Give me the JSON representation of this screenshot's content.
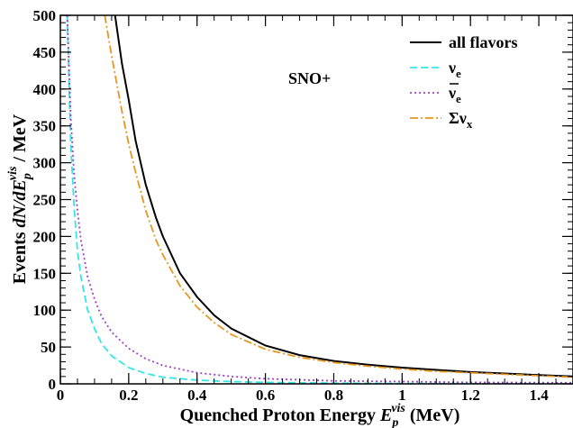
{
  "chart_data": {
    "type": "line",
    "title": "",
    "xlabel": {
      "main": "Quenched Proton Energy ",
      "sym": "E",
      "sub": "p",
      "sup": "vis",
      "unit": " (MeV)"
    },
    "ylabel": {
      "pre": "Events  ",
      "sym": "dN/dE",
      "sub": "p",
      "sup": "vis",
      "post": " / MeV"
    },
    "xlim": [
      0,
      1.5
    ],
    "ylim": [
      0,
      500
    ],
    "xticks": [
      0,
      0.2,
      0.4,
      0.6,
      0.8,
      1,
      1.2,
      1.4
    ],
    "xtick_labels": [
      "0",
      "0.2",
      "0.4",
      "0.6",
      "0.8",
      "1",
      "1.2",
      "1.4"
    ],
    "yticks": [
      0,
      50,
      100,
      150,
      200,
      250,
      300,
      350,
      400,
      450,
      500
    ],
    "ytick_labels": [
      "0",
      "50",
      "100",
      "150",
      "200",
      "250",
      "300",
      "350",
      "400",
      "450",
      "500"
    ],
    "grid": false,
    "legend_position": "top-right",
    "annotation": "SNO+",
    "series": [
      {
        "name": "all flavors",
        "name_html": "all flavors",
        "color": "#000000",
        "dash": "none",
        "x": [
          0.16,
          0.18,
          0.2,
          0.22,
          0.25,
          0.28,
          0.3,
          0.35,
          0.4,
          0.45,
          0.5,
          0.6,
          0.7,
          0.8,
          0.9,
          1.0,
          1.1,
          1.2,
          1.3,
          1.4,
          1.5
        ],
        "y": [
          500,
          435,
          385,
          330,
          270,
          225,
          200,
          150,
          118,
          93,
          75,
          52,
          39,
          31,
          26,
          22,
          19,
          16,
          14,
          12,
          10
        ]
      },
      {
        "name": "νe",
        "name_main": "ν",
        "name_sub": "e",
        "name_bar": false,
        "color": "#33e6e6",
        "dash": "8,4",
        "x": [
          0.02,
          0.03,
          0.04,
          0.05,
          0.06,
          0.08,
          0.1,
          0.12,
          0.15,
          0.2,
          0.25,
          0.3,
          0.4,
          0.5,
          0.6,
          0.8,
          1.0,
          1.2,
          1.5
        ],
        "y": [
          500,
          330,
          240,
          180,
          145,
          100,
          75,
          55,
          38,
          22,
          14,
          9,
          5,
          3,
          2,
          1,
          0.5,
          0.3,
          0.2
        ]
      },
      {
        "name": "ν̄e",
        "name_main": "ν",
        "name_sub": "e",
        "name_bar": true,
        "color": "#a040c8",
        "dash": "2,3",
        "x": [
          0.02,
          0.03,
          0.04,
          0.05,
          0.06,
          0.08,
          0.1,
          0.12,
          0.15,
          0.2,
          0.25,
          0.3,
          0.4,
          0.5,
          0.6,
          0.8,
          1.0,
          1.2,
          1.5
        ],
        "y": [
          500,
          365,
          285,
          235,
          195,
          145,
          115,
          92,
          70,
          48,
          34,
          25,
          15,
          10,
          7,
          4,
          3,
          2,
          1.5
        ]
      },
      {
        "name": "Σνx",
        "name_main": "Σν",
        "name_sub": "x",
        "name_bar": false,
        "color": "#e8961e",
        "dash": "9,3,2,3",
        "x": [
          0.13,
          0.15,
          0.18,
          0.2,
          0.22,
          0.25,
          0.28,
          0.3,
          0.35,
          0.4,
          0.45,
          0.5,
          0.6,
          0.7,
          0.8,
          0.9,
          1.0,
          1.1,
          1.2,
          1.3,
          1.4,
          1.5
        ],
        "y": [
          500,
          445,
          370,
          325,
          287,
          235,
          195,
          175,
          133,
          104,
          83,
          67,
          47,
          36,
          29,
          24,
          20,
          17,
          15,
          13,
          11,
          9
        ]
      }
    ]
  }
}
